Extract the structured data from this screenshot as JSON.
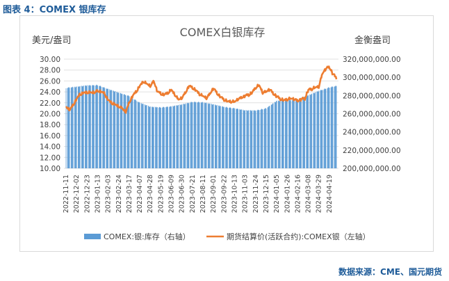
{
  "figure_caption": "图表 4：COMEX 银库存",
  "source_note": "数据来源：CME、国元期货",
  "chart_data": {
    "type": "bar",
    "title": "COMEX白银库存",
    "left_unit": "美元/盎司",
    "right_unit": "金衡盎司",
    "left_axis": {
      "min": 10,
      "max": 30,
      "ticks": [
        "10.00",
        "12.00",
        "14.00",
        "16.00",
        "18.00",
        "20.00",
        "22.00",
        "24.00",
        "26.00",
        "28.00",
        "30.00"
      ]
    },
    "right_axis": {
      "min": 200000000,
      "max": 320000000,
      "ticks": [
        "200,000,000.00",
        "220,000,000.00",
        "240,000,000.00",
        "260,000,000.00",
        "280,000,000.00",
        "300,000,000.00",
        "320,000,000.00"
      ]
    },
    "x_ticks": [
      "2022-11-11",
      "2022-12-02",
      "2022-12-23",
      "2023-01-13",
      "2023-02-03",
      "2023-02-24",
      "2023-03-17",
      "2023-04-07",
      "2023-04-28",
      "2023-05-19",
      "2023-06-09",
      "2023-06-30",
      "2023-07-21",
      "2023-08-11",
      "2023-09-01",
      "2023-09-22",
      "2023-10-13",
      "2023-11-03",
      "2023-11-24",
      "2023-12-15",
      "2024-01-05",
      "2024-01-26",
      "2024-02-16",
      "2024-03-08",
      "2024-03-29",
      "2024-04-19"
    ],
    "legend": {
      "position": "bottom",
      "bar_label": "COMEX:银:库存（右轴）",
      "line_label": "期货结算价(活跃合约):COMEX银（左轴）"
    },
    "colors": {
      "bar": "#5b9bd5",
      "line": "#ed7d31"
    },
    "inventory_anchors": [
      [
        "2022-11-11",
        288500000
      ],
      [
        "2022-12-02",
        289500000
      ],
      [
        "2022-12-23",
        291000000
      ],
      [
        "2023-01-13",
        291500000
      ],
      [
        "2023-02-03",
        287000000
      ],
      [
        "2023-02-24",
        283000000
      ],
      [
        "2023-03-17",
        279500000
      ],
      [
        "2023-04-07",
        272000000
      ],
      [
        "2023-04-28",
        267500000
      ],
      [
        "2023-05-19",
        267000000
      ],
      [
        "2023-06-09",
        268000000
      ],
      [
        "2023-06-30",
        270000000
      ],
      [
        "2023-07-21",
        273000000
      ],
      [
        "2023-08-11",
        272500000
      ],
      [
        "2023-09-01",
        270000000
      ],
      [
        "2023-09-22",
        267500000
      ],
      [
        "2023-10-13",
        266000000
      ],
      [
        "2023-11-03",
        263500000
      ],
      [
        "2023-11-24",
        263500000
      ],
      [
        "2023-12-15",
        266000000
      ],
      [
        "2024-01-05",
        274000000
      ],
      [
        "2024-01-26",
        274500000
      ],
      [
        "2024-02-16",
        276000000
      ],
      [
        "2024-03-08",
        280000000
      ],
      [
        "2024-03-29",
        285000000
      ],
      [
        "2024-04-19",
        289000000
      ],
      [
        "2024-05-03",
        290500000
      ]
    ],
    "price_anchors": [
      [
        "2022-11-11",
        21.3
      ],
      [
        "2022-11-18",
        20.6
      ],
      [
        "2022-12-02",
        22.6
      ],
      [
        "2022-12-09",
        23.6
      ],
      [
        "2022-12-23",
        23.9
      ],
      [
        "2023-01-06",
        23.8
      ],
      [
        "2023-01-13",
        24.2
      ],
      [
        "2023-01-27",
        23.7
      ],
      [
        "2023-02-03",
        22.4
      ],
      [
        "2023-02-17",
        21.6
      ],
      [
        "2023-03-03",
        21.0
      ],
      [
        "2023-03-10",
        20.2
      ],
      [
        "2023-03-17",
        22.1
      ],
      [
        "2023-03-24",
        23.2
      ],
      [
        "2023-04-07",
        25.0
      ],
      [
        "2023-04-14",
        25.9
      ],
      [
        "2023-04-28",
        25.0
      ],
      [
        "2023-05-05",
        26.0
      ],
      [
        "2023-05-12",
        24.0
      ],
      [
        "2023-05-26",
        23.4
      ],
      [
        "2023-06-09",
        24.3
      ],
      [
        "2023-06-23",
        22.6
      ],
      [
        "2023-06-30",
        22.8
      ],
      [
        "2023-07-14",
        25.0
      ],
      [
        "2023-07-21",
        24.8
      ],
      [
        "2023-08-04",
        23.6
      ],
      [
        "2023-08-18",
        22.8
      ],
      [
        "2023-09-01",
        24.6
      ],
      [
        "2023-09-15",
        23.0
      ],
      [
        "2023-09-29",
        22.2
      ],
      [
        "2023-10-13",
        22.2
      ],
      [
        "2023-10-27",
        23.0
      ],
      [
        "2023-11-03",
        23.2
      ],
      [
        "2023-11-17",
        23.8
      ],
      [
        "2023-11-24",
        24.8
      ],
      [
        "2023-12-01",
        25.2
      ],
      [
        "2023-12-08",
        23.8
      ],
      [
        "2023-12-22",
        24.4
      ],
      [
        "2024-01-05",
        23.1
      ],
      [
        "2024-01-19",
        22.4
      ],
      [
        "2024-02-02",
        22.8
      ],
      [
        "2024-02-16",
        22.4
      ],
      [
        "2024-03-01",
        22.8
      ],
      [
        "2024-03-08",
        24.3
      ],
      [
        "2024-03-22",
        24.8
      ],
      [
        "2024-03-29",
        24.9
      ],
      [
        "2024-04-05",
        27.4
      ],
      [
        "2024-04-12",
        28.2
      ],
      [
        "2024-04-19",
        28.6
      ],
      [
        "2024-04-26",
        27.2
      ],
      [
        "2024-05-03",
        26.6
      ]
    ]
  }
}
